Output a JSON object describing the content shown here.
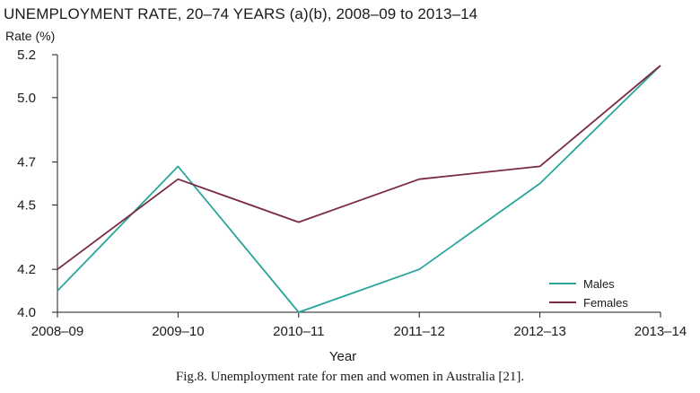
{
  "chart_data": {
    "type": "line",
    "title": "UNEMPLOYMENT RATE, 20–74 YEARS (a)(b), 2008–09 to 2013–14",
    "ylabel": "Rate (%)",
    "xlabel": "Year",
    "categories": [
      "2008–09",
      "2009–10",
      "2010–11",
      "2011–12",
      "2012–13",
      "2013–14"
    ],
    "yticks": [
      "4.0",
      "4.2",
      "4.5",
      "4.7",
      "5.0",
      "5.2"
    ],
    "ylim": [
      4.0,
      5.2
    ],
    "series": [
      {
        "name": "Males",
        "color": "#2aa59a",
        "values": [
          4.1,
          4.68,
          4.0,
          4.2,
          4.6,
          5.15
        ]
      },
      {
        "name": "Females",
        "color": "#7b2a45",
        "values": [
          4.2,
          4.62,
          4.42,
          4.62,
          4.68,
          5.15
        ]
      }
    ],
    "legend_position": "bottom-right",
    "grid": false
  },
  "caption": "Fig.8. Unemployment rate for men and women in Australia [21]."
}
